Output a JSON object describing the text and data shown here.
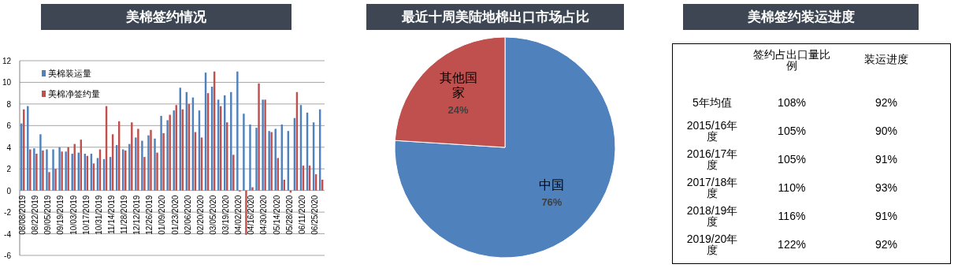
{
  "chart_data": [
    {
      "type": "bar",
      "title": "美棉签约情况",
      "categories": [
        "08/08/2019",
        null,
        "08/22/2019",
        null,
        "09/05/2019",
        null,
        "09/19/2019",
        null,
        "10/03/2019",
        null,
        "10/17/2019",
        null,
        "10/31/2019",
        null,
        "11/14/2019",
        null,
        "11/28/2019",
        null,
        "12/12/2019",
        null,
        "12/26/2019",
        null,
        "01/09/2020",
        null,
        "01/23/2020",
        null,
        "02/06/2020",
        null,
        "02/20/2020",
        null,
        "03/05/2020",
        null,
        "03/19/2020",
        null,
        "04/02/2020",
        null,
        "04/16/2020",
        null,
        "04/30/2020",
        null,
        "05/14/2020",
        null,
        "05/28/2020",
        null,
        "06/11/2020",
        null,
        "06/25/2020",
        null
      ],
      "series": [
        {
          "name": "美棉装运量",
          "color": "#4f81bd",
          "values": [
            6.2,
            7.8,
            3.9,
            5.2,
            3.8,
            3.8,
            4.0,
            3.6,
            3.4,
            3.5,
            3.4,
            3.4,
            3.0,
            2.9,
            3.1,
            4.2,
            3.8,
            4.3,
            4.9,
            4.6,
            5.1,
            4.8,
            6.9,
            6.5,
            7.4,
            9.5,
            9.1,
            8.6,
            7.4,
            10.9,
            9.6,
            8.4,
            8.8,
            9.1,
            11.0,
            7.1,
            6.1,
            5.8,
            8.4,
            5.5,
            5.7,
            6.1,
            5.5,
            6.7,
            7.9,
            7.2,
            6.3,
            7.5
          ]
        },
        {
          "name": "美棉净签约量",
          "color": "#c0504d",
          "values": [
            7.5,
            3.8,
            3.4,
            3.7,
            1.7,
            2.0,
            3.6,
            4.0,
            4.3,
            4.7,
            3.2,
            2.5,
            3.8,
            7.8,
            5.2,
            6.4,
            3.7,
            6.3,
            5.7,
            3.1,
            5.6,
            3.5,
            5.3,
            7.0,
            7.9,
            7.5,
            8.0,
            5.4,
            4.9,
            9.0,
            11.0,
            7.8,
            6.3,
            3.3,
            -0.1,
            -4.1,
            0.3,
            9.9,
            8.4,
            5.4,
            3.0,
            1.0,
            -0.2,
            9.1,
            2.3,
            2.3,
            1.5,
            1.0
          ]
        }
      ],
      "ylim": [
        -6,
        12
      ],
      "yticks": [
        -6,
        -4,
        -2,
        0,
        2,
        4,
        6,
        8,
        10,
        12
      ],
      "grid": "y",
      "legend": "top left"
    },
    {
      "type": "pie",
      "title": "最近十周美陆地棉出口市场占比",
      "categories": [
        "中国",
        "其他国家"
      ],
      "values": [
        76,
        24
      ],
      "value_labels": [
        "76%",
        "24%"
      ],
      "colors": [
        "#4f81bd",
        "#c0504d"
      ]
    },
    {
      "type": "other",
      "title": "美棉签约装运进度",
      "categories": [
        "5年均值",
        "2015/16年度",
        "2016/17年度",
        "2017/18年度",
        "2018/19年度",
        "2019/20年度"
      ],
      "series": [
        {
          "name": "签约占出口量比例",
          "values": [
            108,
            105,
            105,
            110,
            116,
            122
          ],
          "value_labels": [
            "108%",
            "105%",
            "105%",
            "110%",
            "116%",
            "122%"
          ]
        },
        {
          "name": "装运进度",
          "values": [
            92,
            90,
            91,
            93,
            91,
            92
          ],
          "value_labels": [
            "92%",
            "90%",
            "91%",
            "93%",
            "91%",
            "92%"
          ]
        }
      ]
    }
  ]
}
